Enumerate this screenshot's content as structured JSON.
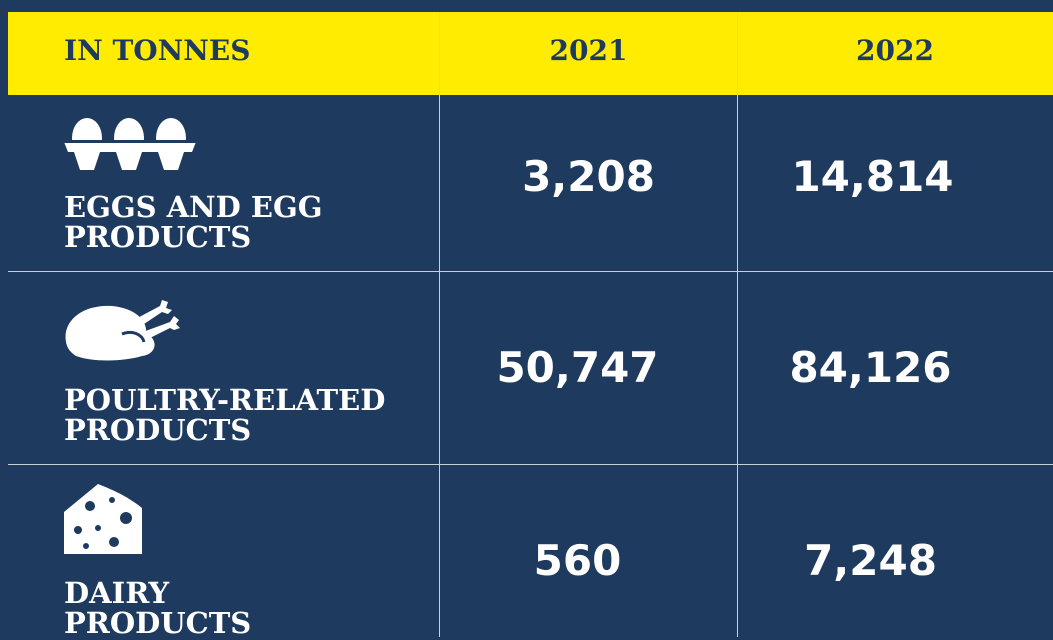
{
  "table": {
    "header": [
      "IN TONNES",
      "2021",
      "2022"
    ],
    "rows": [
      {
        "label": [
          "EGGS AND EGG",
          "PRODUCTS"
        ],
        "values": [
          "3,208",
          "14,814"
        ]
      },
      {
        "label": [
          "POULTRY-RELATED",
          "PRODUCTS"
        ],
        "values": [
          "50,747",
          "84,126"
        ]
      },
      {
        "label": [
          "DAIRY",
          "PRODUCTS"
        ],
        "values": [
          "560",
          "7,248"
        ]
      }
    ]
  }
}
